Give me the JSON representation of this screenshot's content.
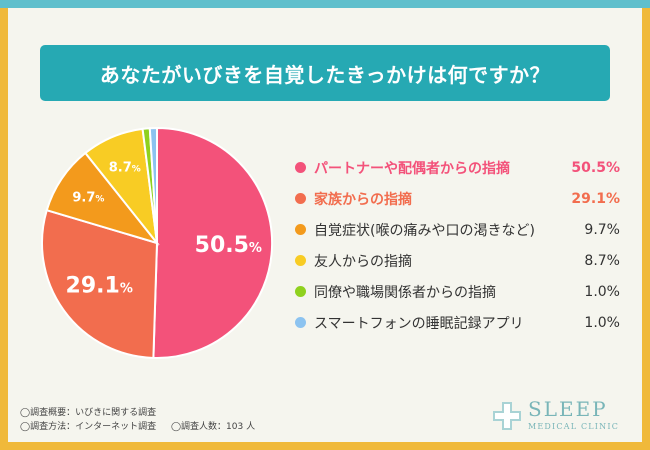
{
  "title": "あなたがいびきを自覚したきっかけは何ですか？",
  "chart_data": {
    "type": "pie",
    "title": "あなたがいびきを自覚したきっかけは何ですか？",
    "categories": [
      "パートナーや配偶者からの指摘",
      "家族からの指摘",
      "自覚症状(喉の痛みや口の渇きなど)",
      "友人からの指摘",
      "同僚や職場関係者からの指摘",
      "スマートフォンの睡眠記録アプリ"
    ],
    "values": [
      50.5,
      29.1,
      9.7,
      8.7,
      1.0,
      1.0
    ],
    "value_labels": [
      "50.5%",
      "29.1%",
      "9.7%",
      "8.7%",
      "1.0%",
      "1.0%"
    ],
    "slice_labels": [
      {
        "num": "50.5",
        "pct": "%"
      },
      {
        "num": "29.1",
        "pct": "%"
      },
      {
        "num": "9.7",
        "pct": "%"
      },
      {
        "num": "8.7",
        "pct": "%"
      }
    ],
    "colors": [
      "#f3527a",
      "#f26d4e",
      "#f39a1c",
      "#f8cc24",
      "#8fd11e",
      "#8cc3f0"
    ],
    "highlighted": [
      true,
      true,
      false,
      false,
      false,
      false
    ],
    "legend_position": "right"
  },
  "notes": {
    "line1": "◯調査概要：いびきに関する調査",
    "line2a": "◯調査方法：インターネット調査",
    "line2b": "◯調査人数：103 人"
  },
  "logo": {
    "word": "SLEEP",
    "sub": "MEDICAL CLINIC"
  }
}
